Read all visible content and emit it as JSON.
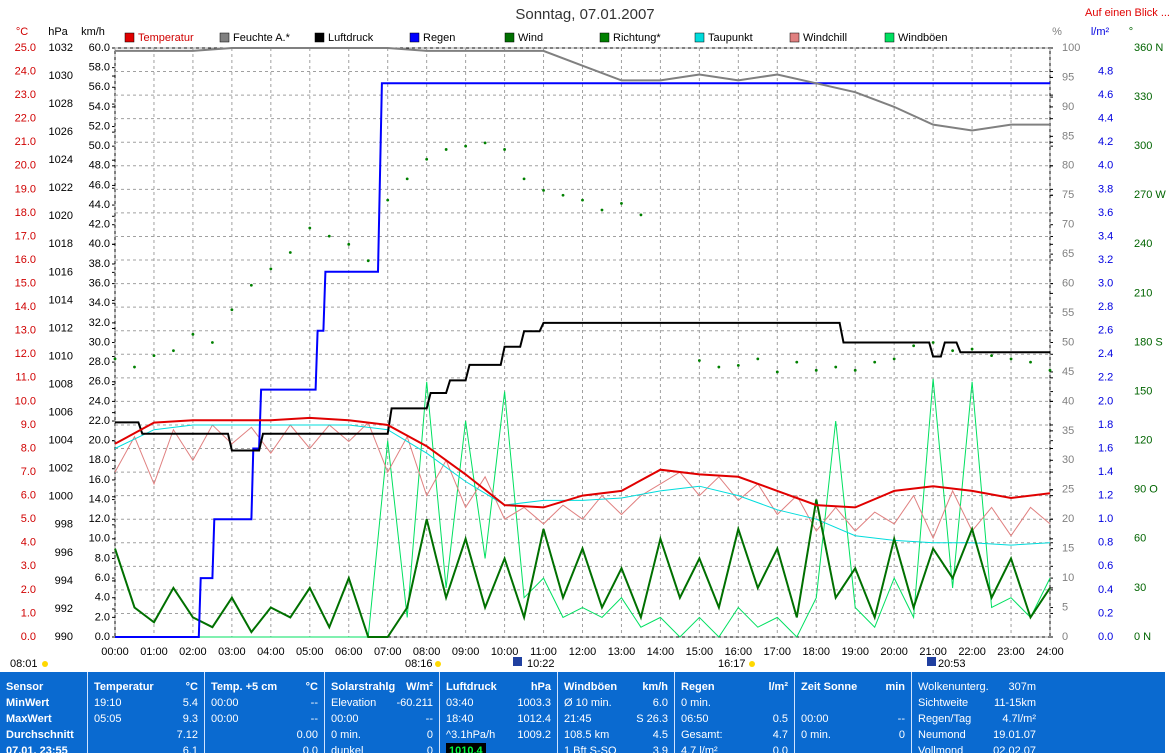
{
  "chart_data": {
    "type": "line",
    "title": "Sonntag, 07.01.2007",
    "grid": true,
    "xlim": [
      0,
      24
    ],
    "xticks": [
      {
        "value": 0,
        "label": "00:00"
      },
      {
        "value": 1,
        "label": "01:00"
      },
      {
        "value": 2,
        "label": "02:00"
      },
      {
        "value": 3,
        "label": "03:00"
      },
      {
        "value": 4,
        "label": "04:00"
      },
      {
        "value": 5,
        "label": "05:00"
      },
      {
        "value": 6,
        "label": "06:00"
      },
      {
        "value": 7,
        "label": "07:00"
      },
      {
        "value": 8,
        "label": "08:00"
      },
      {
        "value": 9,
        "label": "09:00"
      },
      {
        "value": 10,
        "label": "10:00"
      },
      {
        "value": 11,
        "label": "11:00"
      },
      {
        "value": 12,
        "label": "12:00"
      },
      {
        "value": 13,
        "label": "13:00"
      },
      {
        "value": 14,
        "label": "14:00"
      },
      {
        "value": 15,
        "label": "15:00"
      },
      {
        "value": 16,
        "label": "16:00"
      },
      {
        "value": 17,
        "label": "17:00"
      },
      {
        "value": 18,
        "label": "18:00"
      },
      {
        "value": 19,
        "label": "19:00"
      },
      {
        "value": 20,
        "label": "20:00"
      },
      {
        "value": 21,
        "label": "21:00"
      },
      {
        "value": 22,
        "label": "22:00"
      },
      {
        "value": 23,
        "label": "23:00"
      },
      {
        "value": 24,
        "label": "24:00"
      }
    ],
    "x": [
      0,
      0.5,
      1,
      1.5,
      2,
      2.5,
      3,
      3.5,
      4,
      4.5,
      5,
      5.5,
      6,
      6.5,
      7,
      7.5,
      8,
      8.5,
      9,
      9.5,
      10,
      10.5,
      11,
      11.5,
      12,
      12.5,
      13,
      13.5,
      14,
      14.5,
      15,
      15.5,
      16,
      16.5,
      17,
      17.5,
      18,
      18.5,
      19,
      19.5,
      20,
      20.5,
      21,
      21.5,
      22,
      22.5,
      23,
      23.5,
      24
    ],
    "ylabel": "°C",
    "ylim": [
      0,
      25
    ],
    "yticks": [
      {
        "value": 0,
        "label": "0.0"
      },
      {
        "value": 1,
        "label": "1.0"
      },
      {
        "value": 2,
        "label": "2.0"
      },
      {
        "value": 3,
        "label": "3.0"
      },
      {
        "value": 4,
        "label": "4.0"
      },
      {
        "value": 5,
        "label": "5.0"
      },
      {
        "value": 6,
        "label": "6.0"
      },
      {
        "value": 7,
        "label": "7.0"
      },
      {
        "value": 8,
        "label": "8.0"
      },
      {
        "value": 9,
        "label": "9.0"
      },
      {
        "value": 10,
        "label": "10.0"
      },
      {
        "value": 11,
        "label": "11.0"
      },
      {
        "value": 12,
        "label": "12.0"
      },
      {
        "value": 13,
        "label": "13.0"
      },
      {
        "value": 14,
        "label": "14.0"
      },
      {
        "value": 15,
        "label": "15.0"
      },
      {
        "value": 16,
        "label": "16.0"
      },
      {
        "value": 17,
        "label": "17.0"
      },
      {
        "value": 18,
        "label": "18.0"
      },
      {
        "value": 19,
        "label": "19.0"
      },
      {
        "value": 20,
        "label": "20.0"
      },
      {
        "value": 21,
        "label": "21.0"
      },
      {
        "value": 22,
        "label": "22.0"
      },
      {
        "value": 23,
        "label": "23.0"
      },
      {
        "value": 24,
        "label": "24.0"
      },
      {
        "value": 25,
        "label": "25.0"
      }
    ],
    "y2label": "hPa",
    "y2lim": [
      990,
      1032
    ],
    "y2ticks": [
      990,
      992,
      994,
      996,
      998,
      1000,
      1002,
      1004,
      1006,
      1008,
      1010,
      1012,
      1014,
      1016,
      1018,
      1020,
      1022,
      1024,
      1026,
      1028,
      1030,
      1032
    ],
    "y3label": "km/h",
    "y3lim": [
      0,
      60
    ],
    "y3ticks": [
      {
        "value": 0,
        "label": "0.0"
      },
      {
        "value": 2,
        "label": "2.0"
      },
      {
        "value": 4,
        "label": "4.0"
      },
      {
        "value": 6,
        "label": "6.0"
      },
      {
        "value": 8,
        "label": "8.0"
      },
      {
        "value": 10,
        "label": "10.0"
      },
      {
        "value": 12,
        "label": "12.0"
      },
      {
        "value": 14,
        "label": "14.0"
      },
      {
        "value": 16,
        "label": "16.0"
      },
      {
        "value": 18,
        "label": "18.0"
      },
      {
        "value": 20,
        "label": "20.0"
      },
      {
        "value": 22,
        "label": "22.0"
      },
      {
        "value": 24,
        "label": "24.0"
      },
      {
        "value": 26,
        "label": "26.0"
      },
      {
        "value": 28,
        "label": "28.0"
      },
      {
        "value": 30,
        "label": "30.0"
      },
      {
        "value": 32,
        "label": "32.0"
      },
      {
        "value": 34,
        "label": "34.0"
      },
      {
        "value": 36,
        "label": "36.0"
      },
      {
        "value": 38,
        "label": "38.0"
      },
      {
        "value": 40,
        "label": "40.0"
      },
      {
        "value": 42,
        "label": "42.0"
      },
      {
        "value": 44,
        "label": "44.0"
      },
      {
        "value": 46,
        "label": "46.0"
      },
      {
        "value": 48,
        "label": "48.0"
      },
      {
        "value": 50,
        "label": "50.0"
      },
      {
        "value": 52,
        "label": "52.0"
      },
      {
        "value": 54,
        "label": "54.0"
      },
      {
        "value": 56,
        "label": "56.0"
      },
      {
        "value": 58,
        "label": "58.0"
      },
      {
        "value": 60,
        "label": "60.0"
      }
    ],
    "y4label": "%",
    "y4lim": [
      0,
      100
    ],
    "y4ticks": [
      0,
      5,
      10,
      15,
      20,
      25,
      30,
      35,
      40,
      45,
      50,
      55,
      60,
      65,
      70,
      75,
      80,
      85,
      90,
      95,
      100
    ],
    "y5label": "l/m²",
    "y5lim": [
      0,
      5
    ],
    "y5ticks": [
      {
        "value": 0,
        "label": "0.0"
      },
      {
        "value": 0.2,
        "label": "0.2"
      },
      {
        "value": 0.4,
        "label": "0.4"
      },
      {
        "value": 0.6,
        "label": "0.6"
      },
      {
        "value": 0.8,
        "label": "0.8"
      },
      {
        "value": 1,
        "label": "1.0"
      },
      {
        "value": 1.2,
        "label": "1.2"
      },
      {
        "value": 1.4,
        "label": "1.4"
      },
      {
        "value": 1.6,
        "label": "1.6"
      },
      {
        "value": 1.8,
        "label": "1.8"
      },
      {
        "value": 2,
        "label": "2.0"
      },
      {
        "value": 2.2,
        "label": "2.2"
      },
      {
        "value": 2.4,
        "label": "2.4"
      },
      {
        "value": 2.6,
        "label": "2.6"
      },
      {
        "value": 2.8,
        "label": "2.8"
      },
      {
        "value": 3,
        "label": "3.0"
      },
      {
        "value": 3.2,
        "label": "3.2"
      },
      {
        "value": 3.4,
        "label": "3.4"
      },
      {
        "value": 3.6,
        "label": "3.6"
      },
      {
        "value": 3.8,
        "label": "3.8"
      },
      {
        "value": 4,
        "label": "4.0"
      },
      {
        "value": 4.2,
        "label": "4.2"
      },
      {
        "value": 4.4,
        "label": "4.4"
      },
      {
        "value": 4.6,
        "label": "4.6"
      },
      {
        "value": 4.8,
        "label": "4.8"
      }
    ],
    "y6label": "°",
    "y6lim": [
      0,
      360
    ],
    "y6ticks": [
      {
        "value": 0,
        "label": "0 N"
      },
      30,
      60,
      {
        "value": 90,
        "label": "90 O"
      },
      120,
      150,
      {
        "value": 180,
        "label": "180 S"
      },
      210,
      240,
      {
        "value": 270,
        "label": "270 W"
      },
      300,
      330,
      {
        "value": 360,
        "label": "360 N"
      }
    ],
    "annotations": [
      "08:01",
      "08:16",
      "10:22",
      "16:17",
      "20:53"
    ],
    "series": [
      {
        "name": "Temperatur",
        "color": "#e00000",
        "axis": "y",
        "x": [
          0,
          1,
          2,
          3,
          4,
          5,
          6,
          7,
          8,
          9,
          10,
          11,
          12,
          13,
          14,
          15,
          16,
          17,
          18,
          19,
          20,
          21,
          22,
          23,
          24
        ],
        "values": [
          8.2,
          9.1,
          9.2,
          9.2,
          9.2,
          9.3,
          9.2,
          9.0,
          8.1,
          6.9,
          5.6,
          5.5,
          6.0,
          6.2,
          7.1,
          6.9,
          6.8,
          6.2,
          5.6,
          5.5,
          6.2,
          6.4,
          6.2,
          5.9,
          6.1
        ]
      },
      {
        "name": "Feuchte A.*",
        "color": "#808080",
        "axis": "y4",
        "x": [
          0,
          1,
          2,
          3,
          4,
          5,
          6,
          7,
          8,
          9,
          10,
          11,
          12,
          13,
          14,
          15,
          16,
          17,
          18,
          19,
          20,
          21,
          22,
          23,
          24
        ],
        "values": [
          99.5,
          99.5,
          99.5,
          100,
          100,
          100,
          100,
          100,
          99.5,
          99.5,
          99.5,
          99.5,
          97,
          94.5,
          94.5,
          95.5,
          94.5,
          95.5,
          94,
          92.5,
          90,
          87,
          86,
          87,
          87
        ]
      },
      {
        "name": "Luftdruck",
        "color": "#000000",
        "axis": "y2",
        "x": [
          0,
          0.6,
          0.7,
          2.9,
          3.0,
          3.7,
          3.8,
          7.0,
          7.1,
          8.0,
          8.1,
          8.5,
          8.6,
          9.0,
          9.1,
          9.9,
          10.0,
          10.4,
          10.5,
          10.9,
          11.0,
          18.6,
          18.7,
          20.9,
          21.0,
          21.2,
          21.3,
          21.6,
          21.7,
          24
        ],
        "values": [
          1005.3,
          1005.3,
          1004.5,
          1004.5,
          1003.3,
          1003.3,
          1004.5,
          1004.5,
          1006.3,
          1006.3,
          1007.4,
          1007.4,
          1008.3,
          1008.3,
          1009.4,
          1009.4,
          1010.7,
          1010.7,
          1011.8,
          1011.8,
          1012.4,
          1012.4,
          1011.0,
          1011.0,
          1010.0,
          1010.0,
          1011.0,
          1011.0,
          1010.3,
          1010.3
        ]
      },
      {
        "name": "Regen",
        "color": "#0000ff",
        "axis": "y5",
        "x": [
          0,
          2.15,
          2.2,
          2.5,
          2.55,
          3.5,
          3.55,
          3.7,
          3.75,
          5.15,
          5.2,
          5.35,
          5.4,
          6.75,
          6.85,
          24
        ],
        "values": [
          0,
          0,
          0.5,
          0.5,
          1.0,
          1.0,
          1.6,
          1.6,
          2.1,
          2.1,
          2.6,
          2.6,
          3.1,
          3.1,
          4.7,
          4.7
        ]
      },
      {
        "name": "Wind",
        "color": "#007000",
        "axis": "y3",
        "values": [
          9,
          3,
          1.5,
          5,
          2,
          1,
          4,
          0.5,
          3,
          2,
          5,
          1,
          6,
          0,
          0,
          3,
          12,
          4,
          10,
          3,
          8,
          2,
          11,
          4,
          9,
          3,
          7,
          2,
          10,
          4,
          8,
          3,
          11,
          5,
          9,
          2,
          14,
          4,
          7,
          2,
          10,
          3,
          9,
          6,
          11,
          4,
          8,
          2,
          5
        ]
      },
      {
        "name": "Richtung*",
        "color": "#008000",
        "axis": "y6",
        "type": "scatter",
        "values": [
          170,
          165,
          172,
          175,
          185,
          180,
          200,
          215,
          225,
          235,
          250,
          245,
          240,
          230,
          267,
          280,
          292,
          298,
          300,
          302,
          298,
          280,
          273,
          270,
          267,
          261,
          265,
          258,
          null,
          null,
          169,
          165,
          166,
          170,
          162,
          168,
          163,
          165,
          163,
          168,
          170,
          178,
          180,
          175,
          176,
          172,
          170,
          168,
          163
        ]
      },
      {
        "name": "Taupunkt",
        "color": "#00dcdc",
        "axis": "y",
        "x": [
          0,
          1,
          2,
          3,
          4,
          5,
          6,
          7,
          8,
          9,
          10,
          11,
          12,
          13,
          14,
          15,
          16,
          17,
          18,
          19,
          20,
          21,
          22,
          23,
          24
        ],
        "values": [
          8.0,
          8.8,
          9.0,
          9.0,
          9.0,
          9.0,
          9.0,
          8.8,
          7.8,
          6.6,
          5.6,
          5.8,
          5.8,
          5.9,
          6.2,
          6.4,
          6.0,
          5.4,
          5.0,
          4.3,
          4.1,
          4.0,
          4.0,
          3.9,
          4.0
        ]
      },
      {
        "name": "Windchill",
        "color": "#e08080",
        "axis": "y",
        "values": [
          7.0,
          8.5,
          6.5,
          8.8,
          7.5,
          9.0,
          8.2,
          8.9,
          7.8,
          9.0,
          8.0,
          9.0,
          8.3,
          9.1,
          7.0,
          8.5,
          6.0,
          7.5,
          5.5,
          6.8,
          5.0,
          5.5,
          4.8,
          5.6,
          5.0,
          6.0,
          5.2,
          6.0,
          6.5,
          7.0,
          6.0,
          6.8,
          5.8,
          6.5,
          5.2,
          6.0,
          4.5,
          5.5,
          4.5,
          5.3,
          4.8,
          6.0,
          4.2,
          6.2,
          4.5,
          5.5,
          4.3,
          5.5,
          4.8
        ]
      },
      {
        "name": "Windböen",
        "color": "#00e060",
        "axis": "y3",
        "values": [
          0,
          0,
          0,
          0,
          0,
          0,
          0,
          0,
          0,
          0,
          0,
          0,
          0,
          0,
          20,
          2,
          26,
          5,
          22,
          8,
          25,
          4,
          6,
          2,
          3,
          2,
          4,
          1,
          2,
          0,
          2,
          0,
          3,
          1,
          2,
          0,
          4,
          22,
          3,
          1,
          6,
          2,
          26.3,
          5,
          26,
          3,
          4,
          2,
          6
        ]
      }
    ]
  },
  "link": "Auf einen Blick ...",
  "panel": {
    "columns": [
      {
        "title": "Sensor",
        "rows": [
          {
            "label": "MinWert"
          },
          {
            "label": "MaxWert"
          },
          {
            "label": "Durchschnitt"
          },
          {
            "label": "07.01. 23:55"
          }
        ]
      },
      {
        "title": "Temperatur",
        "unit": "°C",
        "rows": [
          {
            "label": "19:10",
            "value": "5.4"
          },
          {
            "label": "05:05",
            "value": "9.3"
          },
          {
            "value": "7.12"
          },
          {
            "value": "6.1"
          }
        ]
      },
      {
        "title": "Temp. +5 cm",
        "unit": "°C",
        "rows": [
          {
            "label": "00:00",
            "value": "--"
          },
          {
            "label": "00:00",
            "value": "--"
          },
          {
            "value": "0.00"
          },
          {
            "value": "0.0"
          }
        ]
      },
      {
        "title": "Solarstrahlg",
        "unit": "W/m²",
        "rows": [
          {
            "label": "Elevation",
            "value": "-60.211"
          },
          {
            "label": "00:00",
            "value": "--"
          },
          {
            "label": "0 min.",
            "value": "0"
          },
          {
            "label": "dunkel",
            "value": "0"
          }
        ]
      },
      {
        "title": "Luftdruck",
        "unit": "hPa",
        "rows": [
          {
            "label": "03:40",
            "value": "1003.3"
          },
          {
            "label": "18:40",
            "value": "1012.4"
          },
          {
            "label": "^3.1hPa/h",
            "value": "1009.2"
          },
          {
            "value": "1010.4"
          }
        ]
      },
      {
        "title": "Windböen",
        "unit": "km/h",
        "rows": [
          {
            "label": "Ø 10 min.",
            "value": "6.0"
          },
          {
            "label": "21:45",
            "value": "S 26.3"
          },
          {
            "label": "108.5 km",
            "value": "4.5"
          },
          {
            "label": "1 Bft S-SO",
            "value": "3.9"
          }
        ]
      },
      {
        "title": "Regen",
        "unit": "l/m²",
        "rows": [
          {
            "label": "0 min."
          },
          {
            "label": "06:50",
            "value": "0.5"
          },
          {
            "label": "Gesamt:",
            "value": "4.7"
          },
          {
            "label": "4.7 l/m²",
            "value": "0.0"
          }
        ]
      },
      {
        "title": "Zeit Sonne",
        "unit": "min",
        "rows": [
          {
            "label": "00:00",
            "value": "--"
          },
          {
            "label": "0 min.",
            "value": "0"
          }
        ]
      }
    ],
    "info": [
      {
        "label": "Wolkenunterg.",
        "value": "307m"
      },
      {
        "label": "Sichtweite",
        "value": "11-15km"
      },
      {
        "label": "Regen/Tag",
        "value": "4.7l/m²"
      },
      {
        "label": "Neumond",
        "value": "19.01.07"
      },
      {
        "label": "Vollmond",
        "value": "02.02.07"
      }
    ]
  }
}
